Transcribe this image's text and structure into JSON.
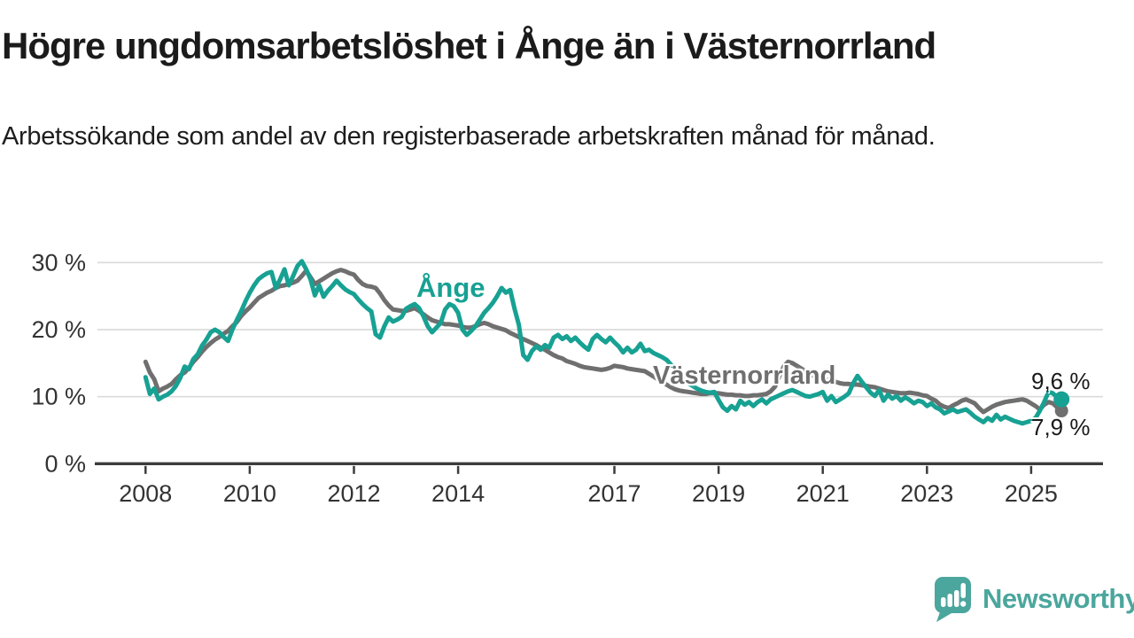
{
  "header": {
    "title": "Högre ungdomsarbetslöshet i Ånge än i Västernorrland",
    "subtitle": "Arbetssökande som andel av den registerbaserade arbetskraften månad för månad."
  },
  "footer": {
    "brand": "Newsworthy"
  },
  "colors": {
    "ange_line": "#17A193",
    "vasternorrland_line": "#6F6F6F",
    "gridline": "#D9D9D9",
    "axis": "#3C3C3C",
    "tick_text": "#333333",
    "logo_teal": "#4BA69D",
    "background": "#FFFFFF"
  },
  "chart_data": {
    "type": "line",
    "unit": "%",
    "frequency": "monthly",
    "x_start": "2008-01",
    "x_end": "2025-08",
    "ylim": [
      0,
      32
    ],
    "grid": "horizontal",
    "legend_position": "inline-labels",
    "y_axis": {
      "ticks": [
        {
          "value": 0,
          "label": "0 %"
        },
        {
          "value": 10,
          "label": "10 %"
        },
        {
          "value": 20,
          "label": "20 %"
        },
        {
          "value": 30,
          "label": "30 %"
        }
      ]
    },
    "x_axis": {
      "ticks": [
        {
          "year": 2008,
          "label": "2008"
        },
        {
          "year": 2010,
          "label": "2010"
        },
        {
          "year": 2012,
          "label": "2012"
        },
        {
          "year": 2014,
          "label": "2014"
        },
        {
          "year": 2017,
          "label": "2017"
        },
        {
          "year": 2019,
          "label": "2019"
        },
        {
          "year": 2021,
          "label": "2021"
        },
        {
          "year": 2023,
          "label": "2023"
        },
        {
          "year": 2025,
          "label": "2025"
        }
      ]
    },
    "series": [
      {
        "name": "Ånge",
        "color": "#17A193",
        "line_width": 5,
        "end_dot_radius": 9,
        "end_value": 9.6,
        "end_label": "9,6 %",
        "values": [
          12.9,
          10.4,
          11.2,
          9.6,
          10.0,
          10.3,
          10.8,
          11.6,
          12.8,
          14.5,
          14.1,
          15.6,
          16.3,
          17.6,
          18.5,
          19.6,
          20.0,
          19.6,
          18.9,
          18.3,
          20.0,
          21.4,
          22.7,
          24.2,
          25.5,
          26.6,
          27.5,
          28.0,
          28.4,
          28.6,
          26.2,
          27.5,
          29.0,
          26.6,
          28.0,
          29.5,
          30.2,
          29.0,
          27.5,
          25.1,
          26.6,
          24.9,
          25.8,
          26.5,
          27.3,
          26.6,
          26.0,
          25.6,
          25.3,
          24.5,
          23.8,
          23.2,
          22.7,
          19.3,
          18.8,
          20.5,
          21.8,
          21.2,
          21.5,
          21.9,
          23.1,
          23.5,
          23.8,
          23.2,
          22.0,
          20.5,
          19.6,
          20.3,
          21.0,
          23.0,
          23.8,
          23.5,
          22.5,
          20.0,
          19.2,
          19.8,
          20.5,
          21.5,
          22.5,
          23.2,
          24.0,
          25.0,
          26.2,
          25.5,
          25.9,
          23.1,
          20.7,
          16.2,
          15.5,
          16.8,
          17.5,
          17.0,
          17.7,
          17.3,
          18.8,
          19.2,
          18.6,
          19.0,
          18.3,
          18.8,
          18.1,
          17.5,
          17.0,
          18.6,
          19.2,
          18.6,
          18.1,
          18.8,
          18.1,
          17.5,
          16.6,
          17.3,
          16.6,
          17.0,
          17.9,
          16.8,
          17.0,
          16.5,
          16.2,
          15.9,
          15.5,
          14.8,
          14.0,
          13.3,
          12.6,
          12.0,
          11.6,
          11.2,
          10.9,
          10.7,
          10.6,
          10.7,
          9.5,
          8.4,
          7.9,
          8.6,
          8.1,
          9.4,
          8.8,
          9.2,
          8.6,
          9.2,
          9.6,
          9.0,
          9.6,
          9.9,
          10.2,
          10.5,
          10.8,
          11.0,
          10.7,
          10.4,
          10.1,
          10.0,
          10.2,
          10.4,
          10.7,
          9.4,
          10.1,
          9.2,
          9.6,
          10.0,
          10.5,
          12.0,
          13.1,
          12.2,
          11.4,
          10.6,
          10.1,
          11.0,
          9.4,
          10.3,
          9.7,
          10.1,
          9.4,
          9.9,
          9.5,
          9.0,
          9.4,
          9.2,
          8.6,
          9.0,
          8.4,
          8.1,
          7.5,
          7.8,
          8.1,
          7.7,
          7.9,
          8.1,
          7.6,
          7.0,
          6.6,
          6.2,
          6.8,
          6.4,
          7.3,
          6.6,
          7.0,
          6.7,
          6.4,
          6.2,
          6.0,
          6.2,
          6.4,
          6.8,
          7.9,
          9.2,
          10.7,
          10.5,
          9.9,
          9.6
        ]
      },
      {
        "name": "Västernorrland",
        "color": "#6F6F6F",
        "line_width": 5,
        "end_dot_radius": 7.5,
        "end_value": 7.9,
        "end_label": "7,9 %",
        "values": [
          15.2,
          13.6,
          12.6,
          10.8,
          11.2,
          11.5,
          11.9,
          12.6,
          13.2,
          13.6,
          14.3,
          15.2,
          15.9,
          16.7,
          17.4,
          18.0,
          18.5,
          18.9,
          19.4,
          19.8,
          20.5,
          21.1,
          22.0,
          22.7,
          23.3,
          24.0,
          24.7,
          25.1,
          25.5,
          25.8,
          26.2,
          26.5,
          26.6,
          26.8,
          27.0,
          27.3,
          28.0,
          28.8,
          27.8,
          26.8,
          27.2,
          27.6,
          28.0,
          28.4,
          28.7,
          28.9,
          28.7,
          28.4,
          28.2,
          27.4,
          26.8,
          26.5,
          26.4,
          26.2,
          25.4,
          24.4,
          23.6,
          23.0,
          22.9,
          22.8,
          22.8,
          23.0,
          23.2,
          22.8,
          22.3,
          21.8,
          21.4,
          21.2,
          21.0,
          20.8,
          20.8,
          20.7,
          20.6,
          20.4,
          20.3,
          20.3,
          20.5,
          20.8,
          21.0,
          20.8,
          20.5,
          20.3,
          20.1,
          19.9,
          19.5,
          19.2,
          18.9,
          18.6,
          18.3,
          18.0,
          17.7,
          17.3,
          17.0,
          16.6,
          16.2,
          15.9,
          15.7,
          15.3,
          15.1,
          14.9,
          14.6,
          14.4,
          14.3,
          14.2,
          14.1,
          14.0,
          14.1,
          14.3,
          14.6,
          14.5,
          14.4,
          14.2,
          14.1,
          14.0,
          13.9,
          13.8,
          13.4,
          13.0,
          12.6,
          12.2,
          11.8,
          11.4,
          11.1,
          10.9,
          10.8,
          10.7,
          10.6,
          10.5,
          10.4,
          10.4,
          10.5,
          10.5,
          10.5,
          10.4,
          10.3,
          10.3,
          10.2,
          10.2,
          10.1,
          10.1,
          10.2,
          10.2,
          10.3,
          10.4,
          10.8,
          11.5,
          13.0,
          14.5,
          15.2,
          15.0,
          14.6,
          14.2,
          13.8,
          13.4,
          13.1,
          12.9,
          12.7,
          12.5,
          12.3,
          12.2,
          12.0,
          11.9,
          11.9,
          11.8,
          11.8,
          11.7,
          11.6,
          11.5,
          11.4,
          11.2,
          11.0,
          10.8,
          10.7,
          10.6,
          10.5,
          10.5,
          10.6,
          10.5,
          10.4,
          10.2,
          10.1,
          9.7,
          9.4,
          8.8,
          8.5,
          8.3,
          8.7,
          9.0,
          9.4,
          9.6,
          9.3,
          9.0,
          8.3,
          7.7,
          8.1,
          8.5,
          8.8,
          9.0,
          9.2,
          9.3,
          9.4,
          9.5,
          9.6,
          9.4,
          9.0,
          8.6,
          8.1,
          8.8,
          9.2,
          9.0,
          8.4,
          7.9
        ]
      }
    ]
  }
}
